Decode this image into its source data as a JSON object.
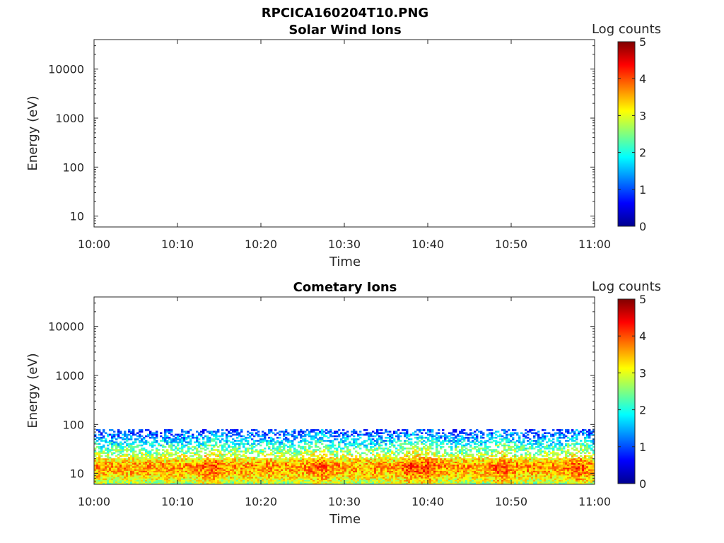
{
  "figure_title": "RPCICA160204T10.PNG",
  "chart_data": [
    {
      "type": "heatmap",
      "title": "Solar Wind Ions",
      "xlabel": "Time",
      "ylabel": "Energy (eV)",
      "x_ticks": [
        "10:00",
        "10:10",
        "10:20",
        "10:30",
        "10:40",
        "10:50",
        "11:00"
      ],
      "xlim": [
        "10:00",
        "11:00"
      ],
      "y_scale": "log",
      "y_ticks": [
        10,
        100,
        1000,
        10000
      ],
      "y_tick_labels": [
        "10",
        "100",
        "1000",
        "10000"
      ],
      "ylim": [
        6,
        40000
      ],
      "colorbar": {
        "label": "Log counts",
        "range": [
          0,
          5
        ],
        "ticks": [
          "0",
          "1",
          "2",
          "3",
          "4",
          "5"
        ],
        "colormap": "jet"
      },
      "data_description": "empty",
      "populated": false
    },
    {
      "type": "heatmap",
      "title": "Cometary Ions",
      "xlabel": "Time",
      "ylabel": "Energy (eV)",
      "x_ticks": [
        "10:00",
        "10:10",
        "10:20",
        "10:30",
        "10:40",
        "10:50",
        "11:00"
      ],
      "xlim": [
        "10:00",
        "11:00"
      ],
      "y_scale": "log",
      "y_ticks": [
        10,
        100,
        1000,
        10000
      ],
      "y_tick_labels": [
        "10",
        "100",
        "1000",
        "10000"
      ],
      "ylim": [
        6,
        40000
      ],
      "colorbar": {
        "label": "Log counts",
        "range": [
          0,
          5
        ],
        "ticks": [
          "0",
          "1",
          "2",
          "3",
          "4",
          "5"
        ],
        "colormap": "jet"
      },
      "populated": true,
      "peak_energy_eV": 15,
      "peak_log_counts": 3.6,
      "energy_range_eV": [
        6,
        80
      ],
      "peak_times": [
        "10:14",
        "10:27",
        "10:38",
        "10:40",
        "10:49",
        "10:58"
      ]
    }
  ]
}
